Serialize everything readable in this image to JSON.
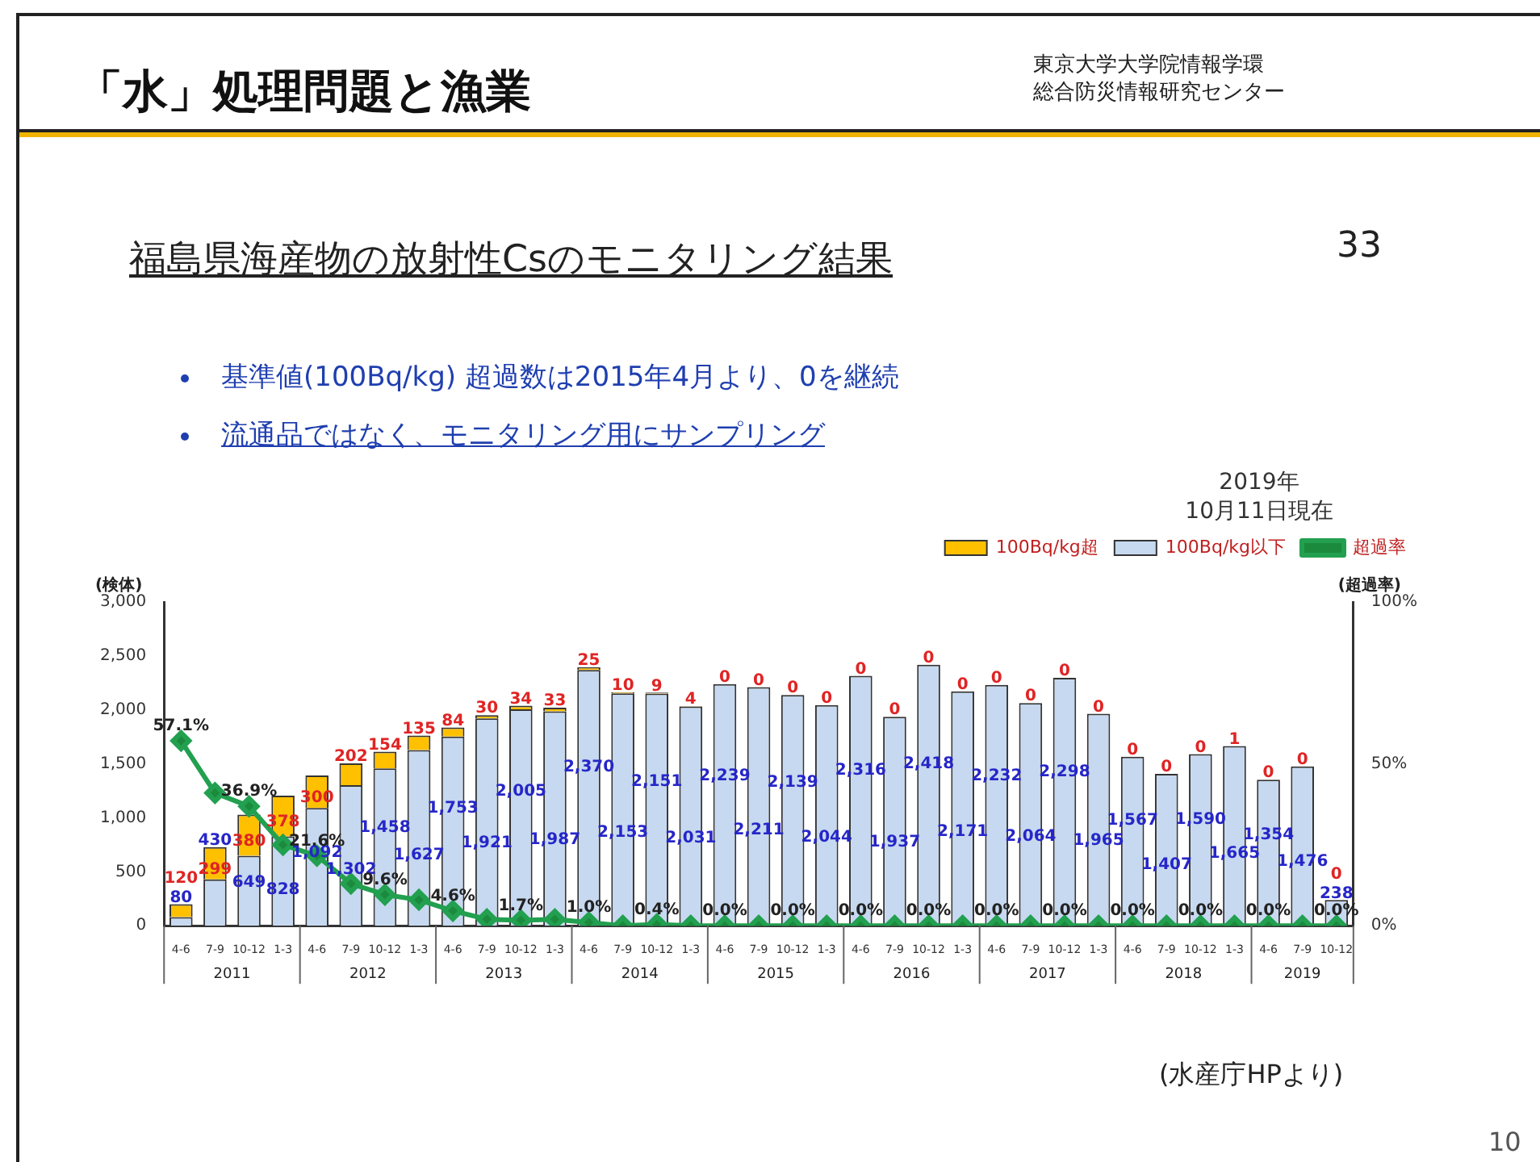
{
  "chart_data": {
    "type": "bar",
    "title": "「水」処理問題と漁業",
    "subtitle": "福島県海産物の放射性Csのモニタリング結果",
    "ylabel": "(検体)",
    "y2label": "(超過率)",
    "categories": [
      "4-6",
      "7-9",
      "10-12",
      "1-3",
      "4-6",
      "7-9",
      "10-12",
      "1-3",
      "4-6",
      "7-9",
      "10-12",
      "1-3",
      "4-6",
      "7-9",
      "10-12",
      "1-3",
      "4-6",
      "7-9",
      "10-12",
      "1-3",
      "4-6",
      "7-9",
      "10-12",
      "1-3",
      "4-6",
      "7-9",
      "10-12",
      "1-3",
      "4-6",
      "7-9",
      "10-12",
      "1-3",
      "4-6",
      "7-9",
      "10-12"
    ],
    "stacked": true,
    "legend": "top right",
    "marker": "diamond",
    "series": [
      {
        "name": "100Bq/kg以下",
        "color": "#c6d9f0",
        "values": [
          80,
          430,
          649,
          828,
          1092,
          1302,
          1458,
          1627,
          1753,
          1921,
          2005,
          1987,
          2370,
          2153,
          2151,
          2031,
          2239,
          2211,
          2139,
          2044,
          2316,
          1937,
          2418,
          2171,
          2232,
          2064,
          2298,
          1965,
          1567,
          1407,
          1590,
          1665,
          1354,
          1476,
          238
        ],
        "value_labels": [
          "80",
          "430",
          "649",
          "828",
          "1,092",
          "1,302",
          "1,458",
          "1,627",
          "1,753",
          "1,921",
          "2,005",
          "1,987",
          "2,370",
          "2,153",
          "2,151",
          "2,031",
          "2,239",
          "2,211",
          "2,139",
          "2,044",
          "2,316",
          "1,937",
          "2,418",
          "2,171",
          "2,232",
          "2,064",
          "2,298",
          "1,965",
          "1,567",
          "1,407",
          "1,590",
          "1,665",
          "1,354",
          "1,476",
          "238"
        ]
      },
      {
        "name": "100Bq/kg超",
        "color": "#ffc000",
        "values": [
          120,
          299,
          380,
          378,
          300,
          202,
          154,
          135,
          84,
          30,
          34,
          33,
          25,
          10,
          9,
          4,
          0,
          0,
          0,
          0,
          0,
          0,
          0,
          0,
          0,
          0,
          0,
          0,
          0,
          0,
          0,
          1,
          0,
          0,
          0
        ],
        "value_labels": [
          "120",
          "299",
          "380",
          "378",
          "300",
          "202",
          "154",
          "135",
          "84",
          "30",
          "34",
          "33",
          "25",
          "10",
          "9",
          "4",
          "0",
          "0",
          "0",
          "0",
          "0",
          "0",
          "0",
          "0",
          "0",
          "0",
          "0",
          "0",
          "0",
          "0",
          "0",
          "1",
          "0",
          "0",
          "0"
        ]
      },
      {
        "name": "超過率",
        "type": "line",
        "axis": "y2",
        "color": "#22a050",
        "values": [
          57.1,
          41,
          36.9,
          25,
          21.6,
          13,
          9.6,
          8,
          4.6,
          2,
          1.7,
          2,
          1.0,
          0,
          0.4,
          0,
          0.0,
          0,
          0.0,
          0,
          0.0,
          0,
          0.0,
          0,
          0.0,
          0,
          0.0,
          0,
          0.0,
          0,
          0.0,
          0,
          0.0,
          0,
          0.0
        ],
        "value_labels": [
          "57.1%",
          null,
          "36.9%",
          null,
          "21.6%",
          null,
          "9.6%",
          null,
          "4.6%",
          null,
          "1.7%",
          null,
          "1.0%",
          null,
          "0.4%",
          null,
          "0.0%",
          null,
          "0.0%",
          null,
          "0.0%",
          null,
          "0.0%",
          null,
          "0.0%",
          null,
          "0.0%",
          null,
          "0.0%",
          null,
          "0.0%",
          null,
          "0.0%",
          null,
          "0.0%"
        ]
      }
    ],
    "ylim": [
      0,
      3000
    ],
    "yticks": [
      0,
      500,
      {
        "value": 1000,
        "label": "1,000"
      },
      {
        "value": 1500,
        "label": "1,500"
      },
      {
        "value": 2000,
        "label": "2,000"
      },
      {
        "value": 2500,
        "label": "2,500"
      },
      {
        "value": 3000,
        "label": "3,000"
      }
    ],
    "y2lim": [
      0,
      100
    ],
    "y2ticks": [
      {
        "value": 0,
        "label": "0%"
      },
      {
        "value": 50,
        "label": "50%"
      },
      {
        "value": 100,
        "label": "100%"
      }
    ],
    "grid": false,
    "annotations": [
      "基準値(100Bq/kg) 超過数は2015年4月より、0を継続",
      "流通品ではなく、モニタリング用にサンプリング",
      "2019年\n10月11日現在",
      "(水産庁HPより)",
      "33",
      "10",
      "東京大学大学院情報学環",
      "総合防災情報研究センター",
      "2011",
      "2012",
      "2013",
      "2014",
      "2015",
      "2016",
      "2017",
      "2018",
      "2019"
    ]
  }
}
